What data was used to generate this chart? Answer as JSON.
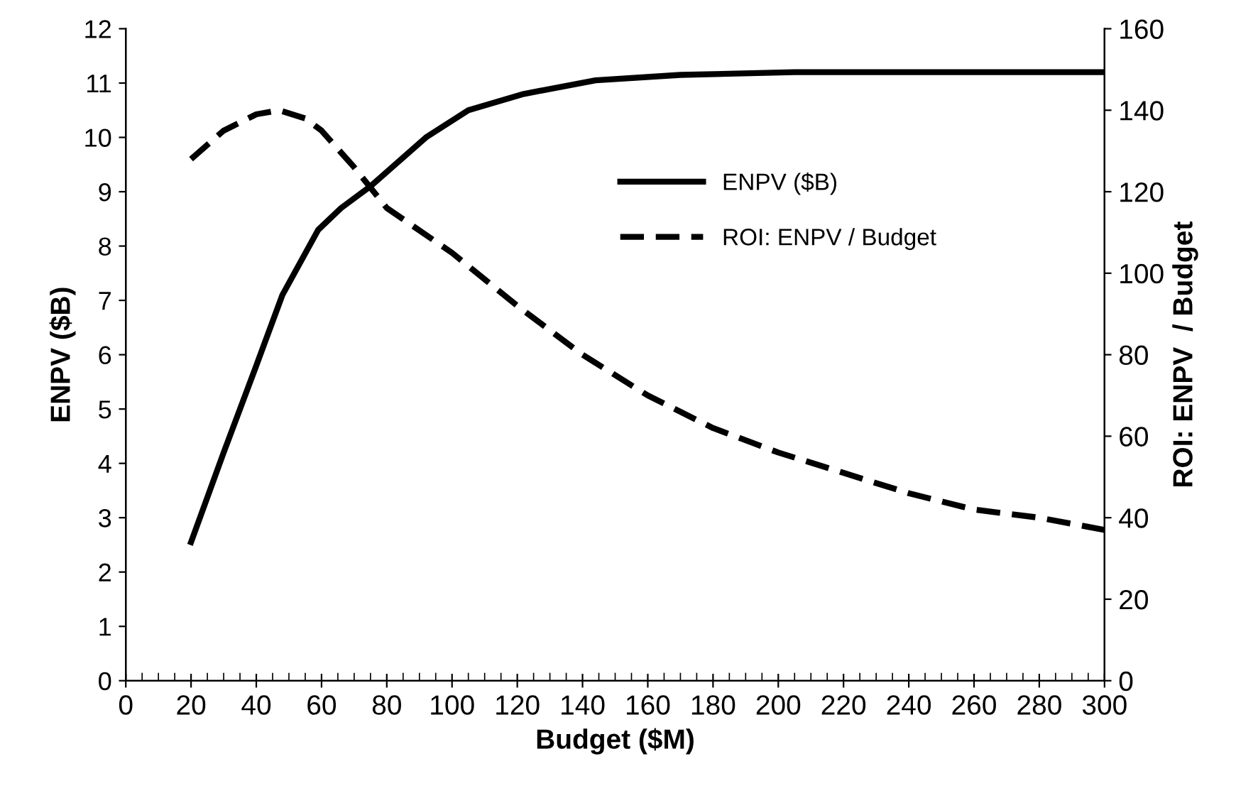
{
  "chart_data": {
    "type": "line",
    "xlabel": "Budget ($M)",
    "ylabel": "ENPV ($B)",
    "y2label": "ROI: ENPV  / Budget",
    "xlim": [
      0,
      300
    ],
    "xticks": [
      0,
      20,
      40,
      60,
      80,
      100,
      120,
      140,
      160,
      180,
      200,
      220,
      240,
      260,
      280,
      300
    ],
    "ylim": [
      0,
      12
    ],
    "yticks": [
      0,
      1,
      2,
      3,
      4,
      5,
      6,
      7,
      8,
      9,
      10,
      11,
      12
    ],
    "y2lim": [
      0,
      160
    ],
    "y2ticks": [
      0,
      20,
      40,
      60,
      80,
      100,
      120,
      140,
      160
    ],
    "grid": false,
    "legend": "right",
    "marker": "none",
    "series": [
      {
        "name": "ENPV ($B)",
        "color": "#000000",
        "line_style": "solid",
        "x": [
          20,
          30,
          40,
          48,
          59,
          66,
          75,
          92,
          105,
          122,
          144,
          170,
          205,
          250,
          300
        ],
        "values": [
          2.55,
          4.2,
          5.8,
          7.1,
          8.3,
          8.7,
          9.1,
          10.0,
          10.5,
          10.8,
          11.05,
          11.15,
          11.2,
          11.2,
          11.2
        ]
      },
      {
        "name": "ROI: ENPV / Budget",
        "color": "#000000",
        "line_style": "dashed",
        "axis": "y2",
        "x": [
          20,
          30,
          40,
          47,
          55,
          60,
          70,
          80,
          100,
          120,
          140,
          160,
          180,
          200,
          220,
          240,
          260,
          280,
          300
        ],
        "values": [
          128,
          135,
          139,
          140,
          138,
          135,
          126,
          116,
          105,
          92,
          80,
          70,
          62,
          56,
          51,
          46,
          42,
          40,
          37
        ]
      }
    ]
  }
}
